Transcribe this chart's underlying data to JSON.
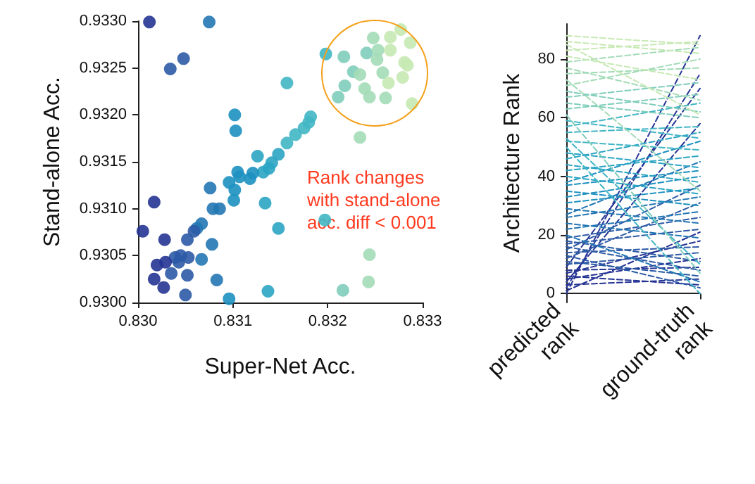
{
  "chart_data": [
    {
      "type": "scatter",
      "xlabel": "Super-Net Acc.",
      "ylabel": "Stand-alone Acc.",
      "marker": "circle",
      "grid": false,
      "xlim": [
        0.83,
        0.833
      ],
      "xticks": [
        {
          "value": 0.83,
          "label": "0.830"
        },
        {
          "value": 0.831,
          "label": "0.831"
        },
        {
          "value": 0.832,
          "label": "0.832"
        },
        {
          "value": 0.833,
          "label": "0.833"
        }
      ],
      "ylim": [
        0.93,
        0.933
      ],
      "yticks": [
        {
          "value": 0.93,
          "label": "0.9300"
        },
        {
          "value": 0.9305,
          "label": "0.9305"
        },
        {
          "value": 0.931,
          "label": "0.9310"
        },
        {
          "value": 0.9315,
          "label": "0.9315"
        },
        {
          "value": 0.932,
          "label": "0.9320"
        },
        {
          "value": 0.9325,
          "label": "0.9325"
        },
        {
          "value": 0.933,
          "label": "0.9330"
        }
      ],
      "annotations": [
        "Rank changes with stand-alone acc. diff < 0.001"
      ],
      "x": [
        0.83012,
        0.83075,
        0.83048,
        0.83034,
        0.83198,
        0.83217,
        0.83241,
        0.83248,
        0.83253,
        0.83266,
        0.83277,
        0.83287,
        0.83266,
        0.83252,
        0.83258,
        0.83227,
        0.83234,
        0.83281,
        0.83284,
        0.83279,
        0.83264,
        0.83239,
        0.83244,
        0.83261,
        0.83218,
        0.83211,
        0.83289,
        0.83157,
        0.83234,
        0.83102,
        0.83103,
        0.83182,
        0.8318,
        0.83175,
        0.83166,
        0.83157,
        0.83148,
        0.83141,
        0.83138,
        0.83126,
        0.83132,
        0.83121,
        0.83118,
        0.83105,
        0.83107,
        0.83096,
        0.83102,
        0.83101,
        0.83076,
        0.83134,
        0.83017,
        0.83079,
        0.83086,
        0.83067,
        0.83062,
        0.83059,
        0.83005,
        0.83028,
        0.83052,
        0.83078,
        0.83148,
        0.83045,
        0.83053,
        0.83067,
        0.83039,
        0.83029,
        0.8302,
        0.83035,
        0.83052,
        0.83017,
        0.83027,
        0.8305,
        0.83083,
        0.83096,
        0.83137,
        0.83216,
        0.83243,
        0.83244,
        0.83197,
        0.83043
      ],
      "values": [
        0.93299,
        0.93299,
        0.9326,
        0.93249,
        0.93265,
        0.93262,
        0.93266,
        0.93282,
        0.93269,
        0.93283,
        0.93291,
        0.93277,
        0.93269,
        0.93259,
        0.93245,
        0.93246,
        0.93243,
        0.93256,
        0.93253,
        0.9324,
        0.93234,
        0.93228,
        0.93219,
        0.93218,
        0.93231,
        0.93219,
        0.93212,
        0.93234,
        0.93176,
        0.932,
        0.93183,
        0.93198,
        0.93192,
        0.93186,
        0.93179,
        0.9317,
        0.93158,
        0.93149,
        0.93143,
        0.93156,
        0.93139,
        0.93138,
        0.93132,
        0.93139,
        0.93134,
        0.93128,
        0.9312,
        0.93109,
        0.93122,
        0.93106,
        0.93107,
        0.931,
        0.931,
        0.93084,
        0.93079,
        0.93076,
        0.93076,
        0.93067,
        0.93067,
        0.93062,
        0.93079,
        0.9305,
        0.93048,
        0.93046,
        0.93048,
        0.93043,
        0.9304,
        0.93031,
        0.93029,
        0.93025,
        0.93016,
        0.93008,
        0.93024,
        0.93004,
        0.93012,
        0.93013,
        0.93022,
        0.93051,
        0.93088,
        0.93043
      ],
      "colors": [
        "#253494",
        "#2277b4",
        "#2c5aa6",
        "#2c5aa6",
        "#41b6c4",
        "#7fcdbb",
        "#7fcdbb",
        "#a3dbb7",
        "#a3dbb7",
        "#c7e9b4",
        "#c7e9b4",
        "#c7e9b4",
        "#c7e9b4",
        "#a3dbb7",
        "#a3dbb7",
        "#7fcdbb",
        "#a3dbb7",
        "#c7e9b4",
        "#c7e9b4",
        "#c7e9b4",
        "#c7e9b4",
        "#a3dbb7",
        "#a3dbb7",
        "#a3dbb7",
        "#7fcdbb",
        "#7fcdbb",
        "#c7e9b4",
        "#41b6c4",
        "#a3dbb7",
        "#1d91c0",
        "#1d91c0",
        "#41b6c4",
        "#41b6c4",
        "#41b6c4",
        "#41b6c4",
        "#41b6c4",
        "#2ba4c3",
        "#2ba4c3",
        "#2ba4c3",
        "#2ba4c3",
        "#2ba4c3",
        "#1d91c0",
        "#1d91c0",
        "#1d91c0",
        "#1d91c0",
        "#1d91c0",
        "#1d91c0",
        "#1d91c0",
        "#2277b4",
        "#2ba4c3",
        "#253494",
        "#2277b4",
        "#2277b4",
        "#2277b4",
        "#2277b4",
        "#2c5aa6",
        "#253494",
        "#253494",
        "#2c5aa6",
        "#2277b4",
        "#2ba4c3",
        "#2c5aa6",
        "#2c5aa6",
        "#2277b4",
        "#2c5aa6",
        "#253494",
        "#253494",
        "#2c5aa6",
        "#2c5aa6",
        "#253494",
        "#253494",
        "#2c5aa6",
        "#2277b4",
        "#1d91c0",
        "#2ba4c3",
        "#7fcdbb",
        "#a3dbb7",
        "#a3dbb7",
        "#41b6c4",
        "#2c5aa6"
      ]
    },
    {
      "type": "line",
      "ylabel": "Architecture Rank",
      "marker": "none",
      "line_style": "dashed",
      "categories": [
        "predicted rank",
        "ground-truth rank"
      ],
      "ylim": [
        -3,
        92
      ],
      "yticks": [
        0,
        20,
        40,
        60,
        80
      ],
      "series": [
        {
          "color": "#253494",
          "values": [
            0,
            88
          ]
        },
        {
          "color": "#253494",
          "values": [
            1,
            21
          ]
        },
        {
          "color": "#253494",
          "values": [
            2,
            75
          ]
        },
        {
          "color": "#253494",
          "values": [
            3,
            5
          ]
        },
        {
          "color": "#253494",
          "values": [
            4,
            58
          ]
        },
        {
          "color": "#253494",
          "values": [
            5,
            12
          ]
        },
        {
          "color": "#253494",
          "values": [
            6,
            3
          ]
        },
        {
          "color": "#253494",
          "values": [
            7,
            18
          ]
        },
        {
          "color": "#253494",
          "values": [
            8,
            9
          ]
        },
        {
          "color": "#253494",
          "values": [
            9,
            70
          ]
        },
        {
          "color": "#2c5aa6",
          "values": [
            10,
            14
          ]
        },
        {
          "color": "#2c5aa6",
          "values": [
            11,
            6
          ]
        },
        {
          "color": "#2c5aa6",
          "values": [
            12,
            31
          ]
        },
        {
          "color": "#2c5aa6",
          "values": [
            13,
            2
          ]
        },
        {
          "color": "#2c5aa6",
          "values": [
            14,
            16
          ]
        },
        {
          "color": "#2c5aa6",
          "values": [
            15,
            37
          ]
        },
        {
          "color": "#2c5aa6",
          "values": [
            16,
            8
          ]
        },
        {
          "color": "#2c5aa6",
          "values": [
            17,
            22
          ]
        },
        {
          "color": "#2c5aa6",
          "values": [
            18,
            11
          ]
        },
        {
          "color": "#2c5aa6",
          "values": [
            19,
            26
          ]
        },
        {
          "color": "#2277b4",
          "values": [
            20,
            4
          ]
        },
        {
          "color": "#2277b4",
          "values": [
            22,
            28
          ]
        },
        {
          "color": "#2277b4",
          "values": [
            24,
            19
          ]
        },
        {
          "color": "#2277b4",
          "values": [
            26,
            33
          ]
        },
        {
          "color": "#2277b4",
          "values": [
            27,
            45
          ]
        },
        {
          "color": "#2277b4",
          "values": [
            29,
            24
          ]
        },
        {
          "color": "#1d91c0",
          "values": [
            31,
            36
          ]
        },
        {
          "color": "#1d91c0",
          "values": [
            33,
            40
          ]
        },
        {
          "color": "#1d91c0",
          "values": [
            35,
            30
          ]
        },
        {
          "color": "#1d91c0",
          "values": [
            37,
            42
          ]
        },
        {
          "color": "#1d91c0",
          "values": [
            38,
            52
          ]
        },
        {
          "color": "#2ba4c3",
          "values": [
            40,
            34
          ]
        },
        {
          "color": "#2ba4c3",
          "values": [
            42,
            47
          ]
        },
        {
          "color": "#2ba4c3",
          "values": [
            44,
            38
          ]
        },
        {
          "color": "#2ba4c3",
          "values": [
            46,
            55
          ]
        },
        {
          "color": "#2ba4c3",
          "values": [
            48,
            43
          ]
        },
        {
          "color": "#41b6c4",
          "values": [
            50,
            0
          ]
        },
        {
          "color": "#41b6c4",
          "values": [
            52,
            49
          ]
        },
        {
          "color": "#41b6c4",
          "values": [
            53,
            10
          ]
        },
        {
          "color": "#41b6c4",
          "values": [
            55,
            57
          ]
        },
        {
          "color": "#41b6c4",
          "values": [
            57,
            65
          ]
        },
        {
          "color": "#41b6c4",
          "values": [
            59,
            53
          ]
        },
        {
          "color": "#7fcdbb",
          "values": [
            61,
            7
          ]
        },
        {
          "color": "#7fcdbb",
          "values": [
            63,
            68
          ]
        },
        {
          "color": "#7fcdbb",
          "values": [
            65,
            60
          ]
        },
        {
          "color": "#7fcdbb",
          "values": [
            67,
            72
          ]
        },
        {
          "color": "#7fcdbb",
          "values": [
            69,
            62
          ]
        },
        {
          "color": "#a3dbb7",
          "values": [
            71,
            80
          ]
        },
        {
          "color": "#a3dbb7",
          "values": [
            73,
            35
          ]
        },
        {
          "color": "#a3dbb7",
          "values": [
            75,
            77
          ]
        },
        {
          "color": "#a3dbb7",
          "values": [
            77,
            66
          ]
        },
        {
          "color": "#a3dbb7",
          "values": [
            79,
            84
          ]
        },
        {
          "color": "#c7e9b4",
          "values": [
            81,
            73
          ]
        },
        {
          "color": "#c7e9b4",
          "values": [
            83,
            86
          ]
        },
        {
          "color": "#c7e9b4",
          "values": [
            85,
            61
          ]
        },
        {
          "color": "#c7e9b4",
          "values": [
            86,
            82
          ]
        },
        {
          "color": "#c7e9b4",
          "values": [
            88,
            85
          ]
        }
      ]
    }
  ]
}
